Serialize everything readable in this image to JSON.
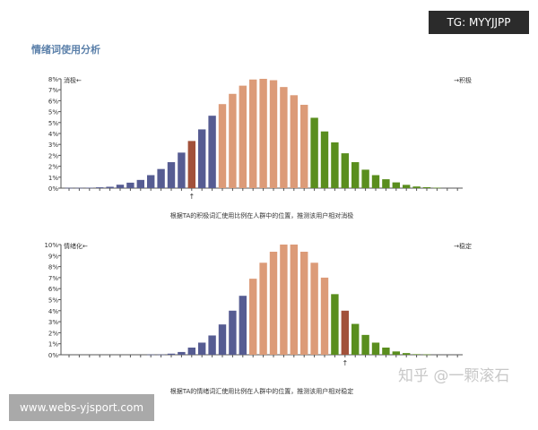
{
  "title": "情绪词使用分析",
  "watermarks": {
    "tg": "TG: MYYJJPP",
    "site": "www.webs-yjsport.com",
    "zhihu": "知乎 @一颗滚石"
  },
  "colors": {
    "blue": "#565c92",
    "red": "#a2513a",
    "orange": "#dc9b78",
    "green": "#5a8e1e"
  },
  "chart_data": [
    {
      "type": "bar",
      "left_label": "消极←",
      "right_label": "→积极",
      "caption": "根据TA的积极词汇使用比例在人群中的位置，推测该用户相对消极",
      "ytick_labels": [
        "0%",
        "1%",
        "2%",
        "2%",
        "3%",
        "4%",
        "5%",
        "5%",
        "6%",
        "7%",
        "8%"
      ],
      "ylim": [
        0,
        8
      ],
      "marker_index": 12,
      "values": [
        0.02,
        0.02,
        0.03,
        0.06,
        0.1,
        0.25,
        0.4,
        0.6,
        0.95,
        1.4,
        1.9,
        2.6,
        3.45,
        4.3,
        5.3,
        6.15,
        6.9,
        7.5,
        7.95,
        8.0,
        7.9,
        7.4,
        6.8,
        6.1,
        5.15,
        4.15,
        3.35,
        2.55,
        1.9,
        1.35,
        0.95,
        0.65,
        0.42,
        0.24,
        0.12,
        0.07,
        0.03,
        0,
        0
      ],
      "bar_colors": [
        "blue",
        "blue",
        "blue",
        "blue",
        "blue",
        "blue",
        "blue",
        "blue",
        "blue",
        "blue",
        "blue",
        "blue",
        "red",
        "blue",
        "blue",
        "orange",
        "orange",
        "orange",
        "orange",
        "orange",
        "orange",
        "orange",
        "orange",
        "orange",
        "green",
        "green",
        "green",
        "green",
        "green",
        "green",
        "green",
        "green",
        "green",
        "green",
        "green",
        "green",
        "green",
        "green",
        "green"
      ]
    },
    {
      "type": "bar",
      "left_label": "情绪化←",
      "right_label": "→稳定",
      "caption": "根据TA的情绪词汇使用比例在人群中的位置，推测该用户相对稳定",
      "ytick_labels": [
        "0%",
        "1%",
        "2%",
        "3%",
        "4%",
        "5%",
        "6%",
        "7%",
        "8%",
        "9%",
        "10%"
      ],
      "ylim": [
        0,
        10
      ],
      "marker_index": 27,
      "values": [
        0,
        0,
        0,
        0,
        0,
        0,
        0,
        0,
        0.02,
        0.02,
        0.1,
        0.25,
        0.65,
        1.1,
        1.75,
        2.75,
        4.0,
        5.35,
        6.9,
        8.35,
        9.35,
        10,
        10,
        9.35,
        8.35,
        7.0,
        5.5,
        4.0,
        2.8,
        1.8,
        1.1,
        0.65,
        0.3,
        0.15,
        0.05,
        0.03,
        0,
        0,
        0
      ],
      "bar_colors": [
        "blue",
        "blue",
        "blue",
        "blue",
        "blue",
        "blue",
        "blue",
        "blue",
        "blue",
        "blue",
        "blue",
        "blue",
        "blue",
        "blue",
        "blue",
        "blue",
        "blue",
        "blue",
        "orange",
        "orange",
        "orange",
        "orange",
        "orange",
        "orange",
        "orange",
        "orange",
        "green",
        "red",
        "green",
        "green",
        "green",
        "green",
        "green",
        "green",
        "green",
        "green",
        "green",
        "green",
        "green"
      ]
    }
  ]
}
